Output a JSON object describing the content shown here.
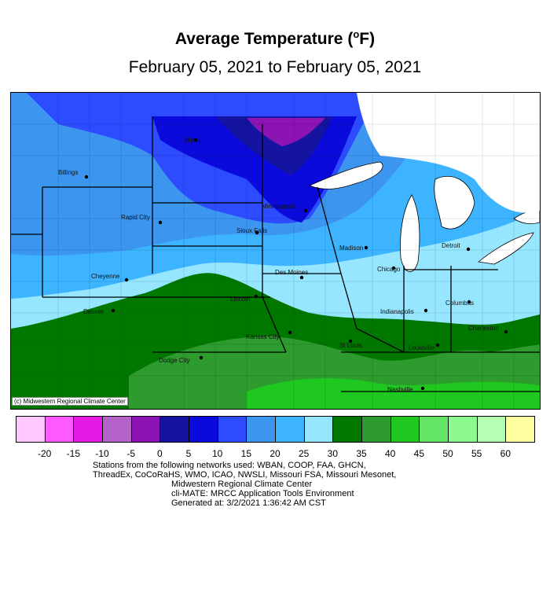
{
  "title_text": "Average Temperature (",
  "title_unit_sup": "o",
  "title_unit_tail": "F)",
  "subtitle": "February 05, 2021 to February 05, 2021",
  "credit": "(c) Midwestern Regional Climate Center",
  "legend": {
    "colors": [
      "#ffc8ff",
      "#ff5aff",
      "#e619e6",
      "#b464c8",
      "#8c14b4",
      "#1414a0",
      "#0a0adc",
      "#2d4cff",
      "#3c96f0",
      "#3cb4ff",
      "#96e6ff",
      "#007800",
      "#2d9b2d",
      "#1ec81e",
      "#64e664",
      "#8cfa8c",
      "#b4ffb4",
      "#ffffa0"
    ],
    "ticks": [
      "-20",
      "-15",
      "-10",
      "-5",
      "0",
      "5",
      "10",
      "15",
      "20",
      "25",
      "30",
      "35",
      "40",
      "45",
      "50",
      "55",
      "60"
    ]
  },
  "cities": [
    {
      "name": "Minot"
    },
    {
      "name": "Billings"
    },
    {
      "name": "Rapid City"
    },
    {
      "name": "Minneapolis"
    },
    {
      "name": "Sioux Falls"
    },
    {
      "name": "Madison"
    },
    {
      "name": "Detroit"
    },
    {
      "name": "Chicago"
    },
    {
      "name": "Des Moines"
    },
    {
      "name": "Cheyenne"
    },
    {
      "name": "Denver"
    },
    {
      "name": "Lincoln"
    },
    {
      "name": "Columbus"
    },
    {
      "name": "Indianapolis"
    },
    {
      "name": "Charleston"
    },
    {
      "name": "Kansas City"
    },
    {
      "name": "St Louis"
    },
    {
      "name": "Louisville"
    },
    {
      "name": "Dodge City"
    },
    {
      "name": "Nashville"
    }
  ],
  "footer": {
    "line1": "Stations from the following networks used: WBAN, COOP, FAA, GHCN,",
    "line2": "ThreadEx, CoCoRaHS, WMO, ICAO, NWSLI, Missouri FSA, Missouri Mesonet,",
    "line3": "Midwestern Regional Climate Center",
    "line4": "cli-MATE: MRCC Application Tools Environment",
    "line5": "Generated at: 3/2/2021 1:36:42 AM CST"
  }
}
